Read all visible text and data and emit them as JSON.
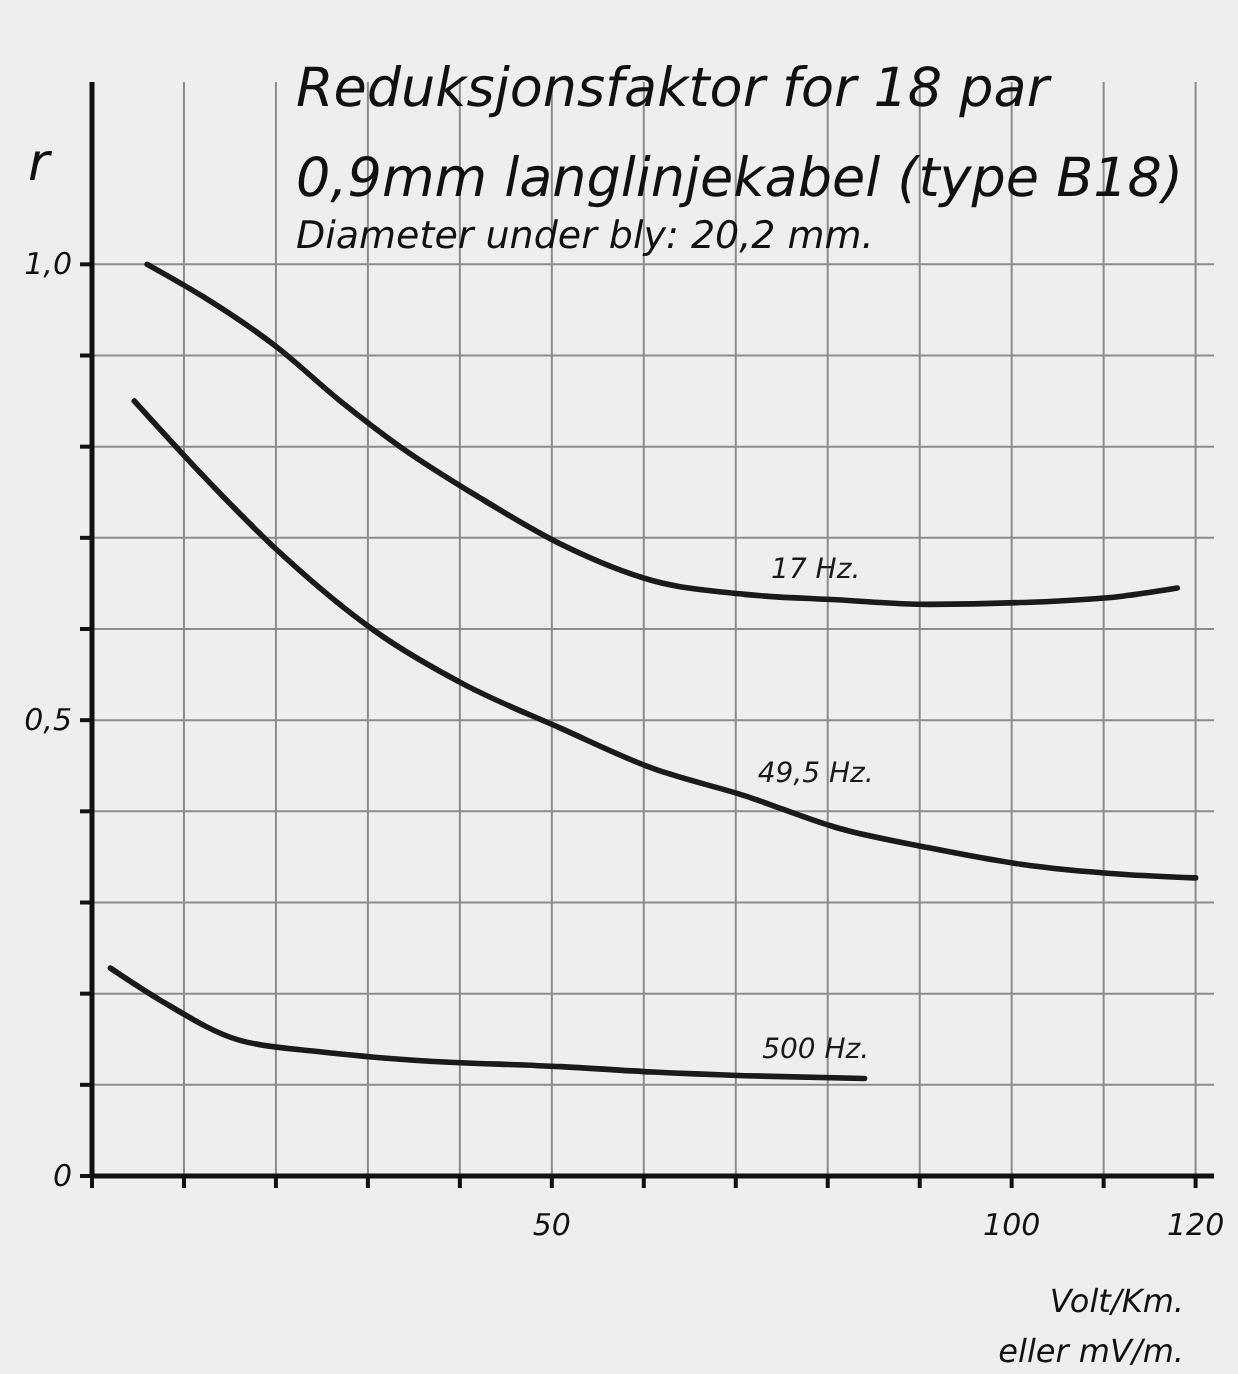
{
  "chart_data": {
    "type": "line",
    "title": "Reduksjonsfaktor for 18 par\n0,9mm langlinjekabel (type B18)",
    "subtitle": "Diameter under bly: 20,2 mm.",
    "xlabel": "Volt/Km.\neller mV/m.",
    "ylabel": "r",
    "xlim": [
      0,
      122
    ],
    "xticks": [
      {
        "value": 0,
        "label": null
      },
      {
        "value": 10,
        "label": null
      },
      {
        "value": 20,
        "label": null
      },
      {
        "value": 30,
        "label": null
      },
      {
        "value": 40,
        "label": null
      },
      50,
      {
        "value": 60,
        "label": null
      },
      {
        "value": 70,
        "label": null
      },
      {
        "value": 80,
        "label": null
      },
      {
        "value": 90,
        "label": null
      },
      100,
      {
        "value": 110,
        "label": null
      },
      120
    ],
    "ylim": [
      0,
      1.2
    ],
    "yticks": [
      0,
      {
        "value": 0.1,
        "label": null
      },
      {
        "value": 0.2,
        "label": null
      },
      {
        "value": 0.3,
        "label": null
      },
      {
        "value": 0.4,
        "label": null
      },
      {
        "value": 0.5,
        "label": "0,5"
      },
      {
        "value": 0.6,
        "label": null
      },
      {
        "value": 0.7,
        "label": null
      },
      {
        "value": 0.8,
        "label": null
      },
      {
        "value": 0.9,
        "label": null
      },
      {
        "value": 1,
        "label": "1,0"
      }
    ],
    "grid": true,
    "series": [
      {
        "name": "17 Hz.",
        "color": "#1a1a1a",
        "x": [
          6,
          12,
          20,
          27,
          33.5,
          42,
          51,
          61,
          71,
          81,
          91,
          101,
          112,
          118
        ],
        "values": [
          1.0,
          0.965,
          0.91,
          0.85,
          0.8,
          0.745,
          0.693,
          0.653,
          0.638,
          0.632,
          0.627,
          0.629,
          0.636,
          0.645
        ]
      },
      {
        "name": "49,5 Hz.",
        "color": "#1a1a1a",
        "x": [
          4.6,
          10.5,
          20.3,
          31,
          40.5,
          51,
          61,
          71,
          81,
          91,
          101,
          112,
          120
        ],
        "values": [
          0.85,
          0.785,
          0.685,
          0.596,
          0.539,
          0.491,
          0.447,
          0.417,
          0.382,
          0.36,
          0.342,
          0.331,
          0.327
        ]
      },
      {
        "name": "500 Hz.",
        "color": "#1a1a1a",
        "x": [
          2,
          7.4,
          16,
          25,
          35,
          51,
          61,
          71,
          84
        ],
        "values": [
          0.228,
          0.193,
          0.149,
          0.136,
          0.127,
          0.12,
          0.114,
          0.11,
          0.107
        ]
      }
    ]
  }
}
